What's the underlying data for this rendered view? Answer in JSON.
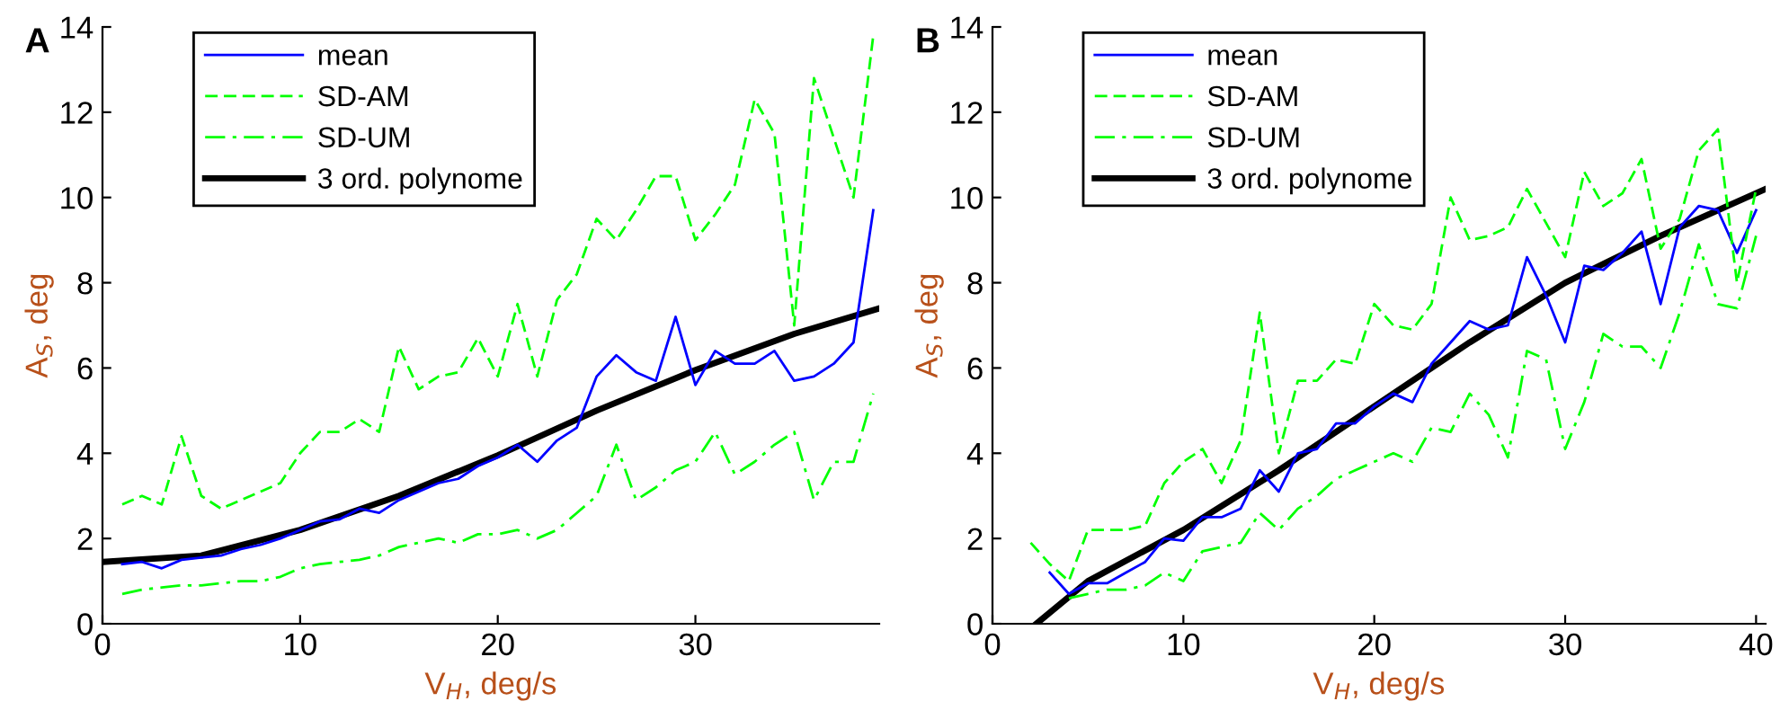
{
  "chart_data": [
    {
      "type": "line",
      "title": "A",
      "xlabel": "V$_{H}$, deg/s",
      "ylabel": "A$_{S}$, deg",
      "xlim": [
        0,
        39.3
      ],
      "xticks": [
        0,
        10,
        20,
        30
      ],
      "ylim": [
        0,
        14
      ],
      "yticks": [
        0,
        2,
        4,
        6,
        8,
        10,
        12,
        14
      ],
      "legend": "top left",
      "grid": false,
      "series": [
        {
          "name": "mean",
          "color": "#0000ff",
          "line_style": "solid",
          "x": [
            1,
            2,
            3,
            4,
            5,
            6,
            7,
            8,
            9,
            10,
            11,
            12,
            13,
            14,
            15,
            16,
            17,
            18,
            19,
            20,
            21,
            22,
            23,
            24,
            25,
            26,
            27,
            28,
            29,
            30,
            31,
            32,
            33,
            34,
            35,
            36,
            37,
            38,
            39
          ],
          "values": [
            1.4,
            1.45,
            1.3,
            1.5,
            1.55,
            1.6,
            1.75,
            1.85,
            2.0,
            2.2,
            2.4,
            2.45,
            2.7,
            2.6,
            2.9,
            3.1,
            3.3,
            3.4,
            3.7,
            3.9,
            4.2,
            3.8,
            4.3,
            4.6,
            5.8,
            6.3,
            5.9,
            5.7,
            7.2,
            5.6,
            6.4,
            6.1,
            6.1,
            6.4,
            5.7,
            5.8,
            6.1,
            6.6,
            9.7
          ]
        },
        {
          "name": "SD-AM",
          "color": "#00ff00",
          "line_style": "dashed",
          "x": [
            1,
            2,
            3,
            4,
            5,
            6,
            7,
            8,
            9,
            10,
            11,
            12,
            13,
            14,
            15,
            16,
            17,
            18,
            19,
            20,
            21,
            22,
            23,
            24,
            25,
            26,
            27,
            28,
            29,
            30,
            31,
            32,
            33,
            34,
            35,
            36,
            37,
            38,
            39
          ],
          "values": [
            2.8,
            3.0,
            2.8,
            4.4,
            3.0,
            2.7,
            2.9,
            3.1,
            3.3,
            4.0,
            4.5,
            4.5,
            4.8,
            4.5,
            6.5,
            5.5,
            5.8,
            5.9,
            6.7,
            5.8,
            7.5,
            5.8,
            7.6,
            8.2,
            9.5,
            9.0,
            9.7,
            10.5,
            10.5,
            9.0,
            9.6,
            10.3,
            12.3,
            11.5,
            7.0,
            12.8,
            11.4,
            10.0,
            13.8
          ]
        },
        {
          "name": "SD-UM",
          "color": "#00ff00",
          "line_style": "dashdot",
          "x": [
            1,
            2,
            3,
            4,
            5,
            6,
            7,
            8,
            9,
            10,
            11,
            12,
            13,
            14,
            15,
            16,
            17,
            18,
            19,
            20,
            21,
            22,
            23,
            24,
            25,
            26,
            27,
            28,
            29,
            30,
            31,
            32,
            33,
            34,
            35,
            36,
            37,
            38,
            39
          ],
          "values": [
            0.7,
            0.8,
            0.85,
            0.9,
            0.9,
            0.95,
            1.0,
            1.0,
            1.1,
            1.3,
            1.4,
            1.45,
            1.5,
            1.6,
            1.8,
            1.9,
            2.0,
            1.9,
            2.1,
            2.1,
            2.2,
            2.0,
            2.2,
            2.6,
            3.0,
            4.2,
            2.9,
            3.2,
            3.6,
            3.8,
            4.5,
            3.5,
            3.8,
            4.2,
            4.5,
            2.9,
            3.8,
            3.8,
            5.4
          ]
        },
        {
          "name": "3 ord. polynome",
          "color": "#000000",
          "line_style": "solid",
          "x": [
            0,
            5,
            10,
            15,
            20,
            25,
            30,
            35,
            39.3
          ],
          "values": [
            1.45,
            1.6,
            2.2,
            3.0,
            3.95,
            5.0,
            5.95,
            6.8,
            7.4
          ]
        }
      ]
    },
    {
      "type": "line",
      "title": "B",
      "xlabel": "V$_{H}$, deg/s",
      "ylabel": "A$_{S}$, deg",
      "xlim": [
        0,
        40.5
      ],
      "xticks": [
        0,
        10,
        20,
        30,
        40
      ],
      "ylim": [
        0,
        14
      ],
      "yticks": [
        0,
        2,
        4,
        6,
        8,
        10,
        12,
        14
      ],
      "legend": "top left",
      "grid": false,
      "series": [
        {
          "name": "mean",
          "color": "#0000ff",
          "line_style": "solid",
          "x": [
            3,
            4,
            5,
            6,
            7,
            8,
            9,
            10,
            11,
            12,
            13,
            14,
            15,
            16,
            17,
            18,
            19,
            20,
            21,
            22,
            23,
            24,
            25,
            26,
            27,
            28,
            29,
            30,
            31,
            32,
            33,
            34,
            35,
            36,
            37,
            38,
            39,
            40
          ],
          "values": [
            1.2,
            0.7,
            0.95,
            0.95,
            1.2,
            1.45,
            2.0,
            1.95,
            2.5,
            2.5,
            2.7,
            3.6,
            3.1,
            4.0,
            4.1,
            4.7,
            4.7,
            5.1,
            5.4,
            5.2,
            6.1,
            6.6,
            7.1,
            6.9,
            7.0,
            8.6,
            7.7,
            6.6,
            8.4,
            8.3,
            8.7,
            9.2,
            7.5,
            9.3,
            9.8,
            9.7,
            8.7,
            9.7
          ]
        },
        {
          "name": "SD-AM",
          "color": "#00ff00",
          "line_style": "dashed",
          "x": [
            2,
            3,
            4,
            5,
            6,
            7,
            8,
            9,
            10,
            11,
            12,
            13,
            14,
            15,
            16,
            17,
            18,
            19,
            20,
            21,
            22,
            23,
            24,
            25,
            26,
            27,
            28,
            29,
            30,
            31,
            32,
            33,
            34,
            35,
            36,
            37,
            38,
            39,
            40
          ],
          "values": [
            1.9,
            1.4,
            1.0,
            2.2,
            2.2,
            2.2,
            2.3,
            3.3,
            3.8,
            4.1,
            3.3,
            4.3,
            7.3,
            4.0,
            5.7,
            5.7,
            6.2,
            6.1,
            7.5,
            7.0,
            6.9,
            7.5,
            10.0,
            9.0,
            9.1,
            9.3,
            10.2,
            9.4,
            8.6,
            10.6,
            9.8,
            10.1,
            10.9,
            8.8,
            9.5,
            11.1,
            11.6,
            8.0,
            10.2
          ]
        },
        {
          "name": "SD-UM",
          "color": "#00ff00",
          "line_style": "dashdot",
          "x": [
            4,
            5,
            6,
            7,
            8,
            9,
            10,
            11,
            12,
            13,
            14,
            15,
            16,
            17,
            18,
            19,
            20,
            21,
            22,
            23,
            24,
            25,
            26,
            27,
            28,
            29,
            30,
            31,
            32,
            33,
            34,
            35,
            36,
            37,
            38,
            39,
            40
          ],
          "values": [
            0.6,
            0.7,
            0.8,
            0.8,
            0.9,
            1.2,
            1.0,
            1.7,
            1.8,
            1.9,
            2.6,
            2.2,
            2.7,
            3.0,
            3.4,
            3.6,
            3.8,
            4.0,
            3.8,
            4.6,
            4.5,
            5.4,
            4.9,
            3.9,
            6.4,
            6.2,
            4.1,
            5.2,
            6.8,
            6.5,
            6.5,
            6.0,
            7.3,
            8.9,
            7.5,
            7.4,
            9.1
          ]
        },
        {
          "name": "3 ord. polynome",
          "color": "#000000",
          "line_style": "solid",
          "x": [
            2.3,
            5,
            10,
            15,
            20,
            25,
            30,
            35,
            40.5
          ],
          "values": [
            0,
            1.0,
            2.2,
            3.6,
            5.1,
            6.6,
            8.0,
            9.1,
            10.2
          ]
        }
      ]
    }
  ]
}
